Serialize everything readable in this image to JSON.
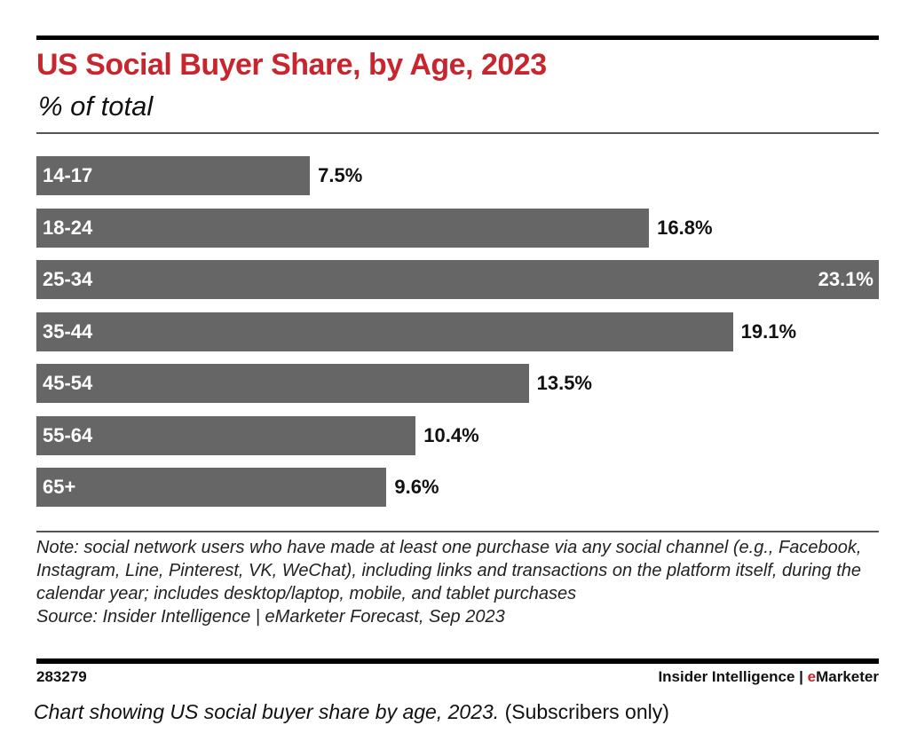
{
  "chart_data": {
    "type": "bar",
    "orientation": "horizontal",
    "title": "US Social Buyer Share, by Age, 2023",
    "subtitle": "% of total",
    "categories": [
      "14-17",
      "18-24",
      "25-34",
      "35-44",
      "45-54",
      "55-64",
      "65+"
    ],
    "values": [
      7.5,
      16.8,
      23.1,
      19.1,
      13.5,
      10.4,
      9.6
    ],
    "labels": [
      "7.5%",
      "16.8%",
      "23.1%",
      "19.1%",
      "13.5%",
      "10.4%",
      "9.6%"
    ],
    "bar_color": "#666666",
    "title_color": "#c8262f",
    "grid": false
  },
  "note": "Note: social network users who have made at least one purchase via any social channel (e.g., Facebook, Instagram, Line, Pinterest, VK, WeChat), including links and transactions on the platform itself, during the calendar year; includes desktop/laptop, mobile, and tablet purchases",
  "source": "Source: Insider Intelligence | eMarketer Forecast, Sep 2023",
  "footer": {
    "chart_id": "283279",
    "brand_prefix": "Insider Intelligence | ",
    "brand_e": "e",
    "brand_rest": "Marketer"
  },
  "caption": {
    "italic": "Chart showing US social buyer share by age, 2023.",
    "plain": " (Subscribers only)"
  }
}
